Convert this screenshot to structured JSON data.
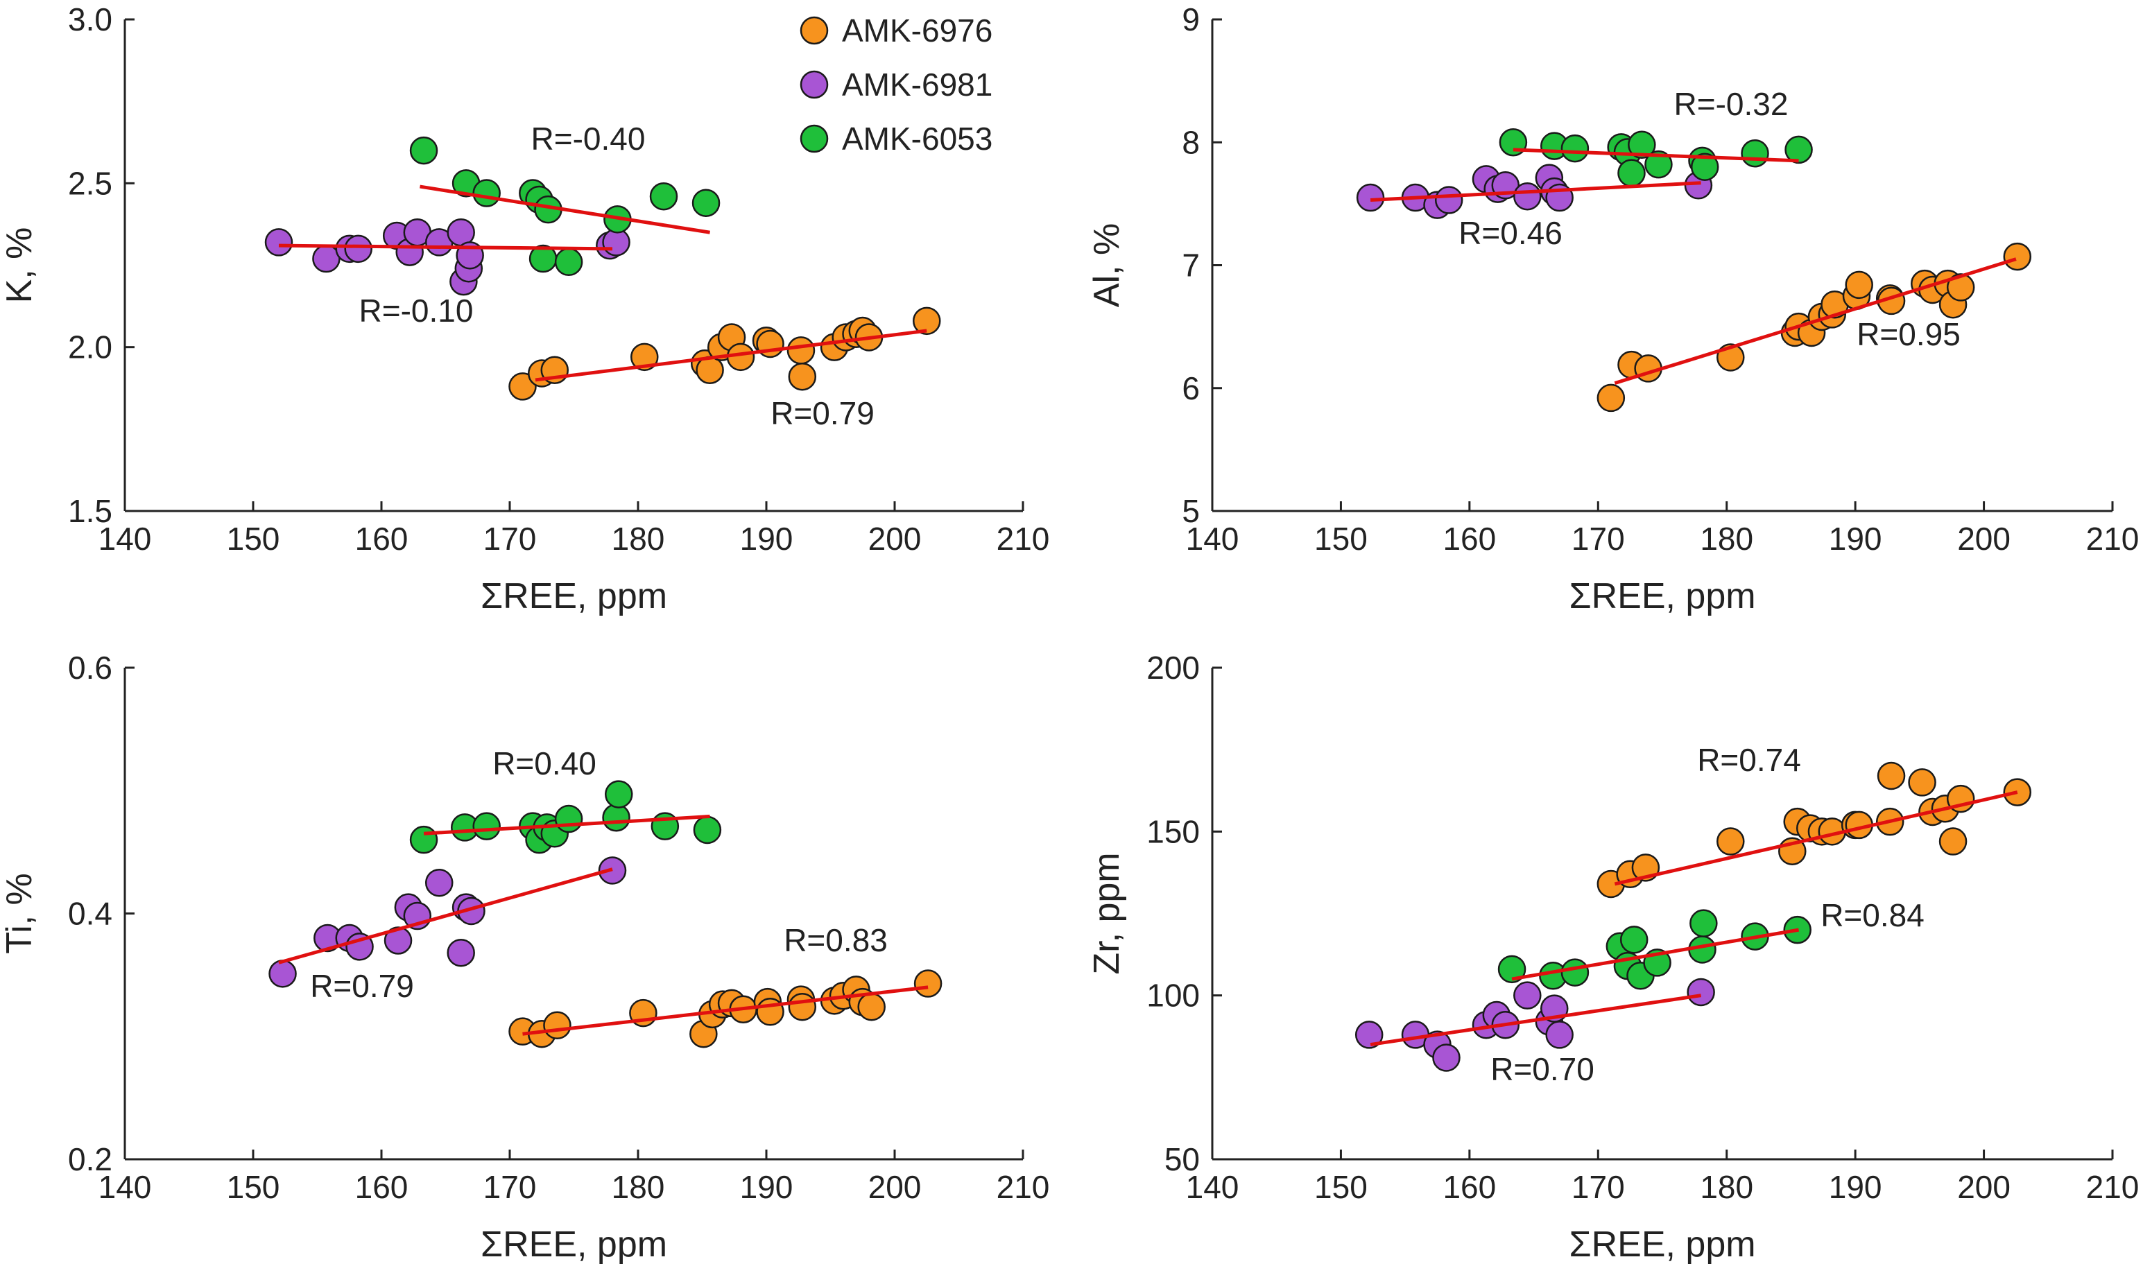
{
  "legend": [
    {
      "name": "AMK-6976",
      "color": "#f7931e"
    },
    {
      "name": "AMK-6981",
      "color": "#a855d4"
    },
    {
      "name": "AMK-6053",
      "color": "#1fbf3a"
    }
  ],
  "chart_data": [
    {
      "id": "k-panel",
      "type": "scatter",
      "title": "",
      "xlabel": "ΣREE, ppm",
      "ylabel": "K, %",
      "xlim": [
        140,
        210
      ],
      "ylim": [
        1.5,
        3.0
      ],
      "xticks": [
        "140",
        "150",
        "160",
        "170",
        "180",
        "190",
        "200",
        "210"
      ],
      "yticks": [
        "1.5",
        "2.0",
        "2.5",
        "3.0"
      ],
      "legend_position": "top-right",
      "series": [
        {
          "name": "AMK-6976",
          "points": [
            [
              171,
              1.88
            ],
            [
              172.5,
              1.92
            ],
            [
              173.5,
              1.93
            ],
            [
              180.5,
              1.97
            ],
            [
              185.2,
              1.95
            ],
            [
              185.6,
              1.93
            ],
            [
              186.5,
              2.0
            ],
            [
              187.3,
              2.03
            ],
            [
              188,
              1.97
            ],
            [
              190,
              2.02
            ],
            [
              190.3,
              2.01
            ],
            [
              192.7,
              1.99
            ],
            [
              192.8,
              1.91
            ],
            [
              195.3,
              2.0
            ],
            [
              196.2,
              2.03
            ],
            [
              197,
              2.04
            ],
            [
              197.5,
              2.05
            ],
            [
              198,
              2.03
            ],
            [
              202.5,
              2.08
            ]
          ],
          "trend": {
            "x": [
              172,
              202.5
            ],
            "y": [
              1.9,
              2.05
            ],
            "label": "R=0.79"
          }
        },
        {
          "name": "AMK-6981",
          "points": [
            [
              152,
              2.32
            ],
            [
              155.7,
              2.27
            ],
            [
              157.5,
              2.3
            ],
            [
              158.2,
              2.3
            ],
            [
              161.2,
              2.34
            ],
            [
              162.2,
              2.29
            ],
            [
              162.8,
              2.35
            ],
            [
              164.5,
              2.32
            ],
            [
              166.2,
              2.35
            ],
            [
              166.4,
              2.2
            ],
            [
              166.8,
              2.24
            ],
            [
              166.9,
              2.28
            ],
            [
              177.8,
              2.31
            ],
            [
              178.3,
              2.32
            ]
          ],
          "trend": {
            "x": [
              152,
              178
            ],
            "y": [
              2.31,
              2.3
            ],
            "label": "R=-0.10"
          }
        },
        {
          "name": "AMK-6053",
          "points": [
            [
              163.3,
              2.6
            ],
            [
              166.6,
              2.5
            ],
            [
              168.2,
              2.47
            ],
            [
              171.8,
              2.47
            ],
            [
              172.3,
              2.45
            ],
            [
              173,
              2.42
            ],
            [
              172.6,
              2.27
            ],
            [
              174.6,
              2.26
            ],
            [
              178.4,
              2.39
            ],
            [
              182,
              2.46
            ],
            [
              185.3,
              2.44
            ]
          ],
          "trend": {
            "x": [
              163,
              185.6
            ],
            "y": [
              2.49,
              2.35
            ],
            "label": "R=-0.40"
          }
        }
      ]
    },
    {
      "id": "al-panel",
      "type": "scatter",
      "title": "",
      "xlabel": "ΣREE, ppm",
      "ylabel": "Al, %",
      "xlim": [
        140,
        210
      ],
      "ylim": [
        5,
        9
      ],
      "xticks": [
        "140",
        "150",
        "160",
        "170",
        "180",
        "190",
        "200",
        "210"
      ],
      "yticks": [
        "5",
        "6",
        "7",
        "8",
        "9"
      ],
      "series": [
        {
          "name": "AMK-6976",
          "points": [
            [
              171,
              5.92
            ],
            [
              172.6,
              6.19
            ],
            [
              173.9,
              6.16
            ],
            [
              180.3,
              6.25
            ],
            [
              185.3,
              6.45
            ],
            [
              185.6,
              6.5
            ],
            [
              186.6,
              6.45
            ],
            [
              187.4,
              6.58
            ],
            [
              188.2,
              6.6
            ],
            [
              188.4,
              6.68
            ],
            [
              190.1,
              6.75
            ],
            [
              190.3,
              6.84
            ],
            [
              192.7,
              6.73
            ],
            [
              192.8,
              6.71
            ],
            [
              195.4,
              6.85
            ],
            [
              196,
              6.8
            ],
            [
              197.2,
              6.85
            ],
            [
              197.6,
              6.68
            ],
            [
              198.2,
              6.82
            ],
            [
              202.6,
              7.07
            ]
          ],
          "trend": {
            "x": [
              171.3,
              202.5
            ],
            "y": [
              6.04,
              7.05
            ],
            "label": "R=0.95"
          }
        },
        {
          "name": "AMK-6981",
          "points": [
            [
              152.3,
              7.55
            ],
            [
              155.8,
              7.55
            ],
            [
              157.5,
              7.49
            ],
            [
              158.4,
              7.53
            ],
            [
              161.3,
              7.7
            ],
            [
              162.2,
              7.62
            ],
            [
              162.8,
              7.65
            ],
            [
              164.5,
              7.56
            ],
            [
              166.2,
              7.71
            ],
            [
              166.6,
              7.6
            ],
            [
              167,
              7.55
            ],
            [
              177.8,
              7.65
            ]
          ],
          "trend": {
            "x": [
              152.3,
              178
            ],
            "y": [
              7.53,
              7.67
            ],
            "label": "R=0.46"
          }
        },
        {
          "name": "AMK-6053",
          "points": [
            [
              163.4,
              8.0
            ],
            [
              166.6,
              7.97
            ],
            [
              168.2,
              7.95
            ],
            [
              171.8,
              7.96
            ],
            [
              172.3,
              7.92
            ],
            [
              172.6,
              7.75
            ],
            [
              173.4,
              7.98
            ],
            [
              174.7,
              7.82
            ],
            [
              178.1,
              7.85
            ],
            [
              178.3,
              7.8
            ],
            [
              182.2,
              7.91
            ],
            [
              185.6,
              7.94
            ]
          ],
          "trend": {
            "x": [
              163.4,
              185.6
            ],
            "y": [
              7.94,
              7.85
            ],
            "label": "R=-0.32"
          }
        }
      ]
    },
    {
      "id": "ti-panel",
      "type": "scatter",
      "title": "",
      "xlabel": "ΣREE, ppm",
      "ylabel": "Ti, %",
      "xlim": [
        140,
        210
      ],
      "ylim": [
        0.2,
        0.6
      ],
      "xticks": [
        "140",
        "150",
        "160",
        "170",
        "180",
        "190",
        "200",
        "210"
      ],
      "yticks": [
        "0.2",
        "0.4",
        "0.6"
      ],
      "series": [
        {
          "name": "AMK-6976",
          "points": [
            [
              171,
              0.304
            ],
            [
              172.5,
              0.302
            ],
            [
              173.7,
              0.309
            ],
            [
              180.4,
              0.319
            ],
            [
              185.1,
              0.302
            ],
            [
              185.8,
              0.318
            ],
            [
              186.6,
              0.326
            ],
            [
              187.3,
              0.327
            ],
            [
              188.2,
              0.322
            ],
            [
              190.1,
              0.328
            ],
            [
              190.3,
              0.32
            ],
            [
              192.7,
              0.33
            ],
            [
              192.8,
              0.324
            ],
            [
              195.3,
              0.329
            ],
            [
              196,
              0.333
            ],
            [
              197,
              0.338
            ],
            [
              197.5,
              0.328
            ],
            [
              198.2,
              0.324
            ],
            [
              202.6,
              0.343
            ]
          ],
          "trend": {
            "x": [
              171,
              202.6
            ],
            "y": [
              0.302,
              0.34
            ],
            "label": "R=0.83"
          }
        },
        {
          "name": "AMK-6981",
          "points": [
            [
              152.3,
              0.351
            ],
            [
              155.8,
              0.38
            ],
            [
              157.5,
              0.38
            ],
            [
              158.3,
              0.373
            ],
            [
              161.3,
              0.378
            ],
            [
              162.1,
              0.405
            ],
            [
              162.8,
              0.398
            ],
            [
              164.5,
              0.425
            ],
            [
              166.2,
              0.368
            ],
            [
              166.6,
              0.405
            ],
            [
              167,
              0.402
            ],
            [
              178,
              0.435
            ]
          ],
          "trend": {
            "x": [
              152,
              178
            ],
            "y": [
              0.36,
              0.436
            ],
            "label": "R=0.79"
          }
        },
        {
          "name": "AMK-6053",
          "points": [
            [
              163.3,
              0.46
            ],
            [
              166.5,
              0.47
            ],
            [
              168.2,
              0.471
            ],
            [
              171.8,
              0.471
            ],
            [
              172.3,
              0.46
            ],
            [
              172.9,
              0.47
            ],
            [
              173.5,
              0.465
            ],
            [
              174.6,
              0.477
            ],
            [
              178.3,
              0.478
            ],
            [
              178.5,
              0.497
            ],
            [
              182.1,
              0.471
            ],
            [
              185.4,
              0.468
            ]
          ],
          "trend": {
            "x": [
              163.3,
              185.6
            ],
            "y": [
              0.465,
              0.479
            ],
            "label": "R=0.40"
          }
        }
      ]
    },
    {
      "id": "zr-panel",
      "type": "scatter",
      "title": "",
      "xlabel": "ΣREE, ppm",
      "ylabel": "Zr, ppm",
      "xlim": [
        140,
        210
      ],
      "ylim": [
        50,
        200
      ],
      "xticks": [
        "140",
        "150",
        "160",
        "170",
        "180",
        "190",
        "200",
        "210"
      ],
      "yticks": [
        "50",
        "100",
        "150",
        "200"
      ],
      "series": [
        {
          "name": "AMK-6976",
          "points": [
            [
              171,
              134
            ],
            [
              172.5,
              137
            ],
            [
              173.7,
              139
            ],
            [
              180.3,
              147
            ],
            [
              185.1,
              144
            ],
            [
              185.5,
              153
            ],
            [
              186.5,
              151
            ],
            [
              187.4,
              150
            ],
            [
              188.2,
              150
            ],
            [
              190,
              152
            ],
            [
              190.3,
              152
            ],
            [
              192.7,
              153
            ],
            [
              192.8,
              167
            ],
            [
              195.2,
              165
            ],
            [
              196,
              156
            ],
            [
              197,
              157
            ],
            [
              197.6,
              147
            ],
            [
              198.2,
              160
            ],
            [
              202.6,
              162
            ]
          ],
          "trend": {
            "x": [
              171.3,
              202.6
            ],
            "y": [
              134,
              162
            ],
            "label": "R=0.74"
          }
        },
        {
          "name": "AMK-6981",
          "points": [
            [
              152.2,
              88
            ],
            [
              155.8,
              88
            ],
            [
              157.5,
              85
            ],
            [
              158.2,
              81
            ],
            [
              161.3,
              91
            ],
            [
              162.1,
              94
            ],
            [
              162.8,
              91
            ],
            [
              164.5,
              100
            ],
            [
              166.2,
              92
            ],
            [
              166.6,
              96
            ],
            [
              167,
              88
            ],
            [
              178,
              101
            ]
          ],
          "trend": {
            "x": [
              152.3,
              178
            ],
            "y": [
              85,
              100
            ],
            "label": "R=0.70"
          }
        },
        {
          "name": "AMK-6053",
          "points": [
            [
              163.3,
              108
            ],
            [
              166.5,
              106
            ],
            [
              168.2,
              107
            ],
            [
              171.7,
              115
            ],
            [
              172.3,
              109
            ],
            [
              172.8,
              117
            ],
            [
              173.3,
              106
            ],
            [
              174.6,
              110
            ],
            [
              178.1,
              114
            ],
            [
              178.2,
              122
            ],
            [
              182.2,
              118
            ],
            [
              185.5,
              120
            ]
          ],
          "trend": {
            "x": [
              163.3,
              185.6
            ],
            "y": [
              105,
              120
            ],
            "label": "R=0.84"
          }
        }
      ]
    }
  ]
}
